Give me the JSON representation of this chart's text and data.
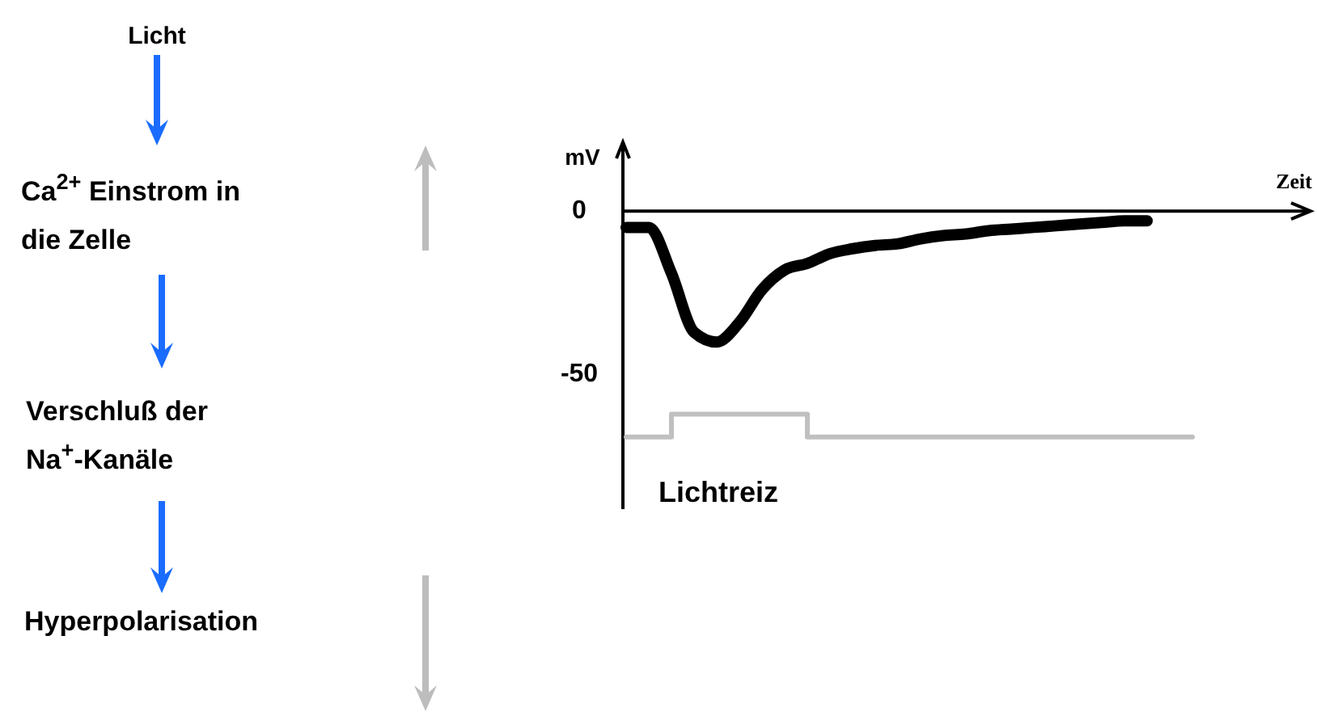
{
  "chart_data": {
    "type": "line",
    "ylabel": "mV",
    "xlabel": "Zeit",
    "categories": [
      null,
      null,
      null,
      null,
      null,
      null,
      null,
      null,
      null,
      null,
      null,
      null,
      null,
      null,
      null,
      null,
      null,
      null,
      null,
      null,
      null,
      null,
      null,
      null,
      null,
      null
    ],
    "ylim": [
      -91,
      21
    ],
    "yticks": [
      0,
      -50
    ],
    "series": [
      {
        "type": "line",
        "color": "#000000",
        "values": [
          -5,
          -5,
          -19,
          -37,
          -40,
          -34,
          -24,
          -18,
          -16,
          -13,
          -11.5,
          -10.5,
          -10,
          -8.5,
          -7.5,
          -7,
          -6,
          -5.5,
          -5,
          -4.5,
          -4,
          -3.5,
          -3,
          -3,
          null,
          null
        ]
      },
      {
        "type": "step",
        "name": "Lichtreiz",
        "color": "#c0c0c0",
        "values": [
          -69,
          -69,
          -62,
          -62,
          -62,
          -62,
          -62,
          -62,
          -69,
          -69,
          -69,
          -69,
          -69,
          -69,
          -69,
          -69,
          -69,
          -69,
          -69,
          -69,
          -69,
          -69,
          -69,
          -69,
          -69,
          -69
        ]
      }
    ],
    "annotations": [
      "Licht",
      "Ca$^{2+}$ Einstrom in\ndie Zelle",
      "Verschluß der\nNa$^{+}$-Kanäle",
      "Hyperpolarisation"
    ]
  }
}
